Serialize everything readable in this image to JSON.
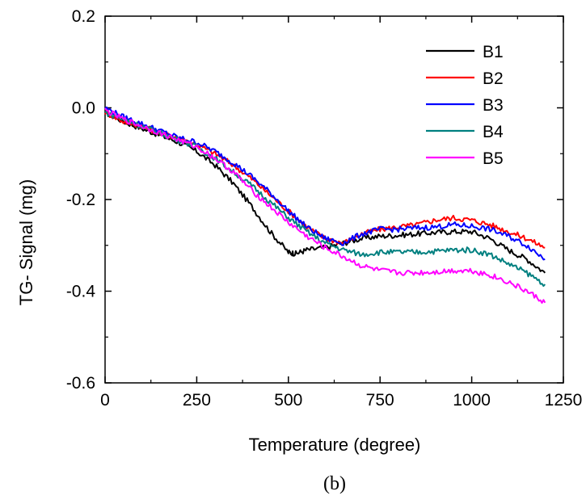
{
  "chart_data": {
    "type": "line",
    "xlabel": "Temperature (degree)",
    "ylabel": "TG- Signal (mg)",
    "caption": "(b)",
    "xlim": [
      0,
      1250
    ],
    "ylim": [
      -0.6,
      0.2
    ],
    "xticks": [
      0,
      250,
      500,
      750,
      1000,
      1250
    ],
    "xtick_labels": [
      "0",
      "250",
      "500",
      "750",
      "1000",
      "1250"
    ],
    "yticks": [
      -0.6,
      -0.4,
      -0.2,
      0.0,
      0.2
    ],
    "ytick_labels": [
      "-0.6",
      "-0.4",
      "-0.2",
      "0.0",
      "0.2"
    ],
    "grid": false,
    "legend_position": "top-right",
    "series": [
      {
        "name": "B1",
        "color": "#000000",
        "x": [
          0,
          50,
          100,
          150,
          200,
          250,
          300,
          350,
          400,
          450,
          500,
          520,
          550,
          600,
          650,
          700,
          750,
          800,
          850,
          900,
          950,
          1000,
          1050,
          1100,
          1150,
          1200
        ],
        "y": [
          -0.01,
          -0.03,
          -0.045,
          -0.06,
          -0.075,
          -0.095,
          -0.125,
          -0.165,
          -0.215,
          -0.27,
          -0.315,
          -0.318,
          -0.31,
          -0.305,
          -0.295,
          -0.285,
          -0.28,
          -0.278,
          -0.275,
          -0.272,
          -0.27,
          -0.27,
          -0.285,
          -0.31,
          -0.33,
          -0.36
        ]
      },
      {
        "name": "B2",
        "color": "#ff0000",
        "x": [
          0,
          50,
          100,
          150,
          200,
          250,
          300,
          350,
          400,
          450,
          500,
          550,
          600,
          650,
          700,
          750,
          800,
          850,
          900,
          950,
          1000,
          1050,
          1100,
          1150,
          1200
        ],
        "y": [
          -0.01,
          -0.03,
          -0.04,
          -0.055,
          -0.065,
          -0.08,
          -0.1,
          -0.125,
          -0.155,
          -0.19,
          -0.225,
          -0.26,
          -0.285,
          -0.295,
          -0.275,
          -0.265,
          -0.26,
          -0.255,
          -0.245,
          -0.24,
          -0.245,
          -0.255,
          -0.27,
          -0.285,
          -0.305
        ]
      },
      {
        "name": "B3",
        "color": "#0000ff",
        "x": [
          0,
          50,
          100,
          150,
          200,
          250,
          300,
          350,
          400,
          450,
          500,
          550,
          600,
          650,
          700,
          750,
          800,
          850,
          900,
          950,
          1000,
          1050,
          1100,
          1150,
          1200
        ],
        "y": [
          0.0,
          -0.02,
          -0.035,
          -0.05,
          -0.065,
          -0.075,
          -0.095,
          -0.12,
          -0.15,
          -0.185,
          -0.225,
          -0.26,
          -0.285,
          -0.295,
          -0.275,
          -0.265,
          -0.265,
          -0.262,
          -0.26,
          -0.255,
          -0.258,
          -0.265,
          -0.28,
          -0.3,
          -0.33
        ]
      },
      {
        "name": "B4",
        "color": "#008080",
        "x": [
          0,
          50,
          100,
          150,
          200,
          250,
          300,
          350,
          400,
          450,
          500,
          550,
          600,
          650,
          700,
          750,
          800,
          850,
          900,
          950,
          1000,
          1050,
          1100,
          1150,
          1200
        ],
        "y": [
          -0.01,
          -0.025,
          -0.04,
          -0.055,
          -0.07,
          -0.085,
          -0.11,
          -0.14,
          -0.17,
          -0.205,
          -0.24,
          -0.27,
          -0.295,
          -0.31,
          -0.32,
          -0.315,
          -0.315,
          -0.315,
          -0.313,
          -0.31,
          -0.31,
          -0.32,
          -0.34,
          -0.36,
          -0.385
        ]
      },
      {
        "name": "B5",
        "color": "#ff00ff",
        "x": [
          0,
          50,
          100,
          150,
          200,
          250,
          300,
          350,
          400,
          450,
          500,
          550,
          600,
          650,
          700,
          750,
          800,
          850,
          900,
          950,
          1000,
          1050,
          1100,
          1150,
          1200
        ],
        "y": [
          -0.005,
          -0.025,
          -0.04,
          -0.055,
          -0.07,
          -0.085,
          -0.11,
          -0.14,
          -0.18,
          -0.215,
          -0.25,
          -0.28,
          -0.305,
          -0.325,
          -0.345,
          -0.355,
          -0.36,
          -0.36,
          -0.358,
          -0.355,
          -0.355,
          -0.365,
          -0.38,
          -0.4,
          -0.425
        ]
      }
    ]
  }
}
